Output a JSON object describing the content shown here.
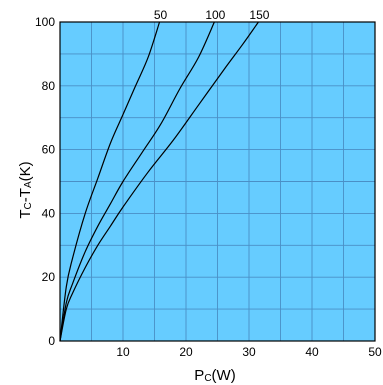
{
  "chart_data": {
    "type": "line",
    "xlabel": {
      "main": "P",
      "sub": "C",
      "unit": "(W)"
    },
    "ylabel": {
      "main1": "T",
      "sub1": "C",
      "sep": "-T",
      "sub2": "A",
      "unit": "(K)"
    },
    "xlim": [
      0,
      50
    ],
    "ylim": [
      0,
      100
    ],
    "xticks": [
      0,
      10,
      20,
      30,
      40,
      50
    ],
    "yticks": [
      0,
      20,
      40,
      60,
      80,
      100
    ],
    "grid": true,
    "colors": {
      "plot_bg": "#66ccff",
      "grid": "#4a8fc6",
      "curve": "#000000"
    },
    "series": [
      {
        "name": "50",
        "x": [
          0,
          1,
          2,
          4,
          6,
          8,
          10,
          12,
          14,
          15.8
        ],
        "y": [
          0,
          17,
          26,
          40,
          51,
          62,
          71,
          80,
          89,
          100
        ]
      },
      {
        "name": "100",
        "x": [
          0,
          1,
          2,
          4,
          6,
          8,
          10,
          13,
          16,
          19,
          22,
          24.5
        ],
        "y": [
          0,
          12,
          18,
          28,
          36,
          43,
          50,
          59,
          68,
          79,
          89,
          100
        ]
      },
      {
        "name": "150",
        "x": [
          0,
          1,
          2,
          4,
          6,
          8,
          10,
          14,
          18,
          22,
          26,
          29,
          31.5
        ],
        "y": [
          0,
          10,
          15,
          23,
          30,
          36,
          42,
          53,
          63,
          74,
          85,
          93,
          100
        ]
      }
    ]
  }
}
